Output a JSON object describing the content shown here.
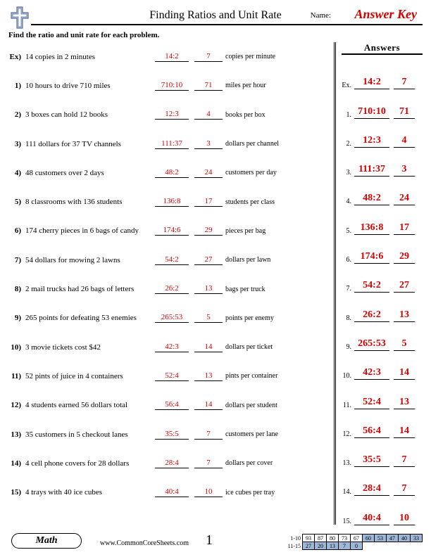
{
  "header": {
    "title": "Finding Ratios and Unit Rate",
    "name_label": "Name:",
    "answer_key": "Answer Key",
    "logo_colors": {
      "outer": "#b7c7e0",
      "inner": "#ffffff",
      "border": "#5a6fa0"
    }
  },
  "instruction": "Find the ratio and unit rate for each problem.",
  "answers_heading": "Answers",
  "colors": {
    "answer_red": "#d30000"
  },
  "problems": [
    {
      "num": "Ex)",
      "text": "14 copies in 2 minutes",
      "ratio": "14:2",
      "rate": "7",
      "unit": "copies per minute"
    },
    {
      "num": "1)",
      "text": "10 hours to drive 710 miles",
      "ratio": "710:10",
      "rate": "71",
      "unit": "miles per hour"
    },
    {
      "num": "2)",
      "text": "3 boxes can hold 12 books",
      "ratio": "12:3",
      "rate": "4",
      "unit": "books per box"
    },
    {
      "num": "3)",
      "text": "111 dollars for 37 TV channels",
      "ratio": "111:37",
      "rate": "3",
      "unit": "dollars per channel"
    },
    {
      "num": "4)",
      "text": "48 customers over 2 days",
      "ratio": "48:2",
      "rate": "24",
      "unit": "customers per day"
    },
    {
      "num": "5)",
      "text": "8 classrooms with 136 students",
      "ratio": "136:8",
      "rate": "17",
      "unit": "students per class"
    },
    {
      "num": "6)",
      "text": "174 cherry pieces in 6 bags of candy",
      "ratio": "174:6",
      "rate": "29",
      "unit": "pieces per bag"
    },
    {
      "num": "7)",
      "text": "54 dollars for mowing 2 lawns",
      "ratio": "54:2",
      "rate": "27",
      "unit": "dollars per lawn"
    },
    {
      "num": "8)",
      "text": "2 mail trucks had 26 bags of letters",
      "ratio": "26:2",
      "rate": "13",
      "unit": "bags per truck"
    },
    {
      "num": "9)",
      "text": "265 points for defeating 53 enemies",
      "ratio": "265:53",
      "rate": "5",
      "unit": "points per enemy"
    },
    {
      "num": "10)",
      "text": "3 movie tickets cost $42",
      "ratio": "42:3",
      "rate": "14",
      "unit": "dollars per ticket"
    },
    {
      "num": "11)",
      "text": "52 pints of juice in 4 containers",
      "ratio": "52:4",
      "rate": "13",
      "unit": "pints per container"
    },
    {
      "num": "12)",
      "text": "4 students earned 56 dollars total",
      "ratio": "56:4",
      "rate": "14",
      "unit": "dollars per student"
    },
    {
      "num": "13)",
      "text": "35 customers in 5 checkout lanes",
      "ratio": "35:5",
      "rate": "7",
      "unit": "customers per lane"
    },
    {
      "num": "14)",
      "text": "4 cell phone covers for 28 dollars",
      "ratio": "28:4",
      "rate": "7",
      "unit": "dollars per cover"
    },
    {
      "num": "15)",
      "text": "4 trays with 40 ice cubes",
      "ratio": "40:4",
      "rate": "10",
      "unit": "ice cubes per tray"
    }
  ],
  "answer_key": [
    {
      "num": "Ex.",
      "ratio": "14:2",
      "rate": "7"
    },
    {
      "num": "1.",
      "ratio": "710:10",
      "rate": "71"
    },
    {
      "num": "2.",
      "ratio": "12:3",
      "rate": "4"
    },
    {
      "num": "3.",
      "ratio": "111:37",
      "rate": "3"
    },
    {
      "num": "4.",
      "ratio": "48:2",
      "rate": "24"
    },
    {
      "num": "5.",
      "ratio": "136:8",
      "rate": "17"
    },
    {
      "num": "6.",
      "ratio": "174:6",
      "rate": "29"
    },
    {
      "num": "7.",
      "ratio": "54:2",
      "rate": "27"
    },
    {
      "num": "8.",
      "ratio": "26:2",
      "rate": "13"
    },
    {
      "num": "9.",
      "ratio": "265:53",
      "rate": "5"
    },
    {
      "num": "10.",
      "ratio": "42:3",
      "rate": "14"
    },
    {
      "num": "11.",
      "ratio": "52:4",
      "rate": "13"
    },
    {
      "num": "12.",
      "ratio": "56:4",
      "rate": "14"
    },
    {
      "num": "13.",
      "ratio": "35:5",
      "rate": "7"
    },
    {
      "num": "14.",
      "ratio": "28:4",
      "rate": "7"
    },
    {
      "num": "15.",
      "ratio": "40:4",
      "rate": "10"
    }
  ],
  "footer": {
    "tab": "Math",
    "url": "www.CommonCoreSheets.com",
    "page": "1",
    "score_rows": [
      {
        "label": "1-10",
        "cells": [
          "93",
          "87",
          "80",
          "73",
          "67",
          "60",
          "53",
          "47",
          "40",
          "33"
        ],
        "shaded_from": 5
      },
      {
        "label": "11-15",
        "cells": [
          "27",
          "20",
          "13",
          "7",
          "0"
        ],
        "shaded_from": 0
      }
    ]
  }
}
